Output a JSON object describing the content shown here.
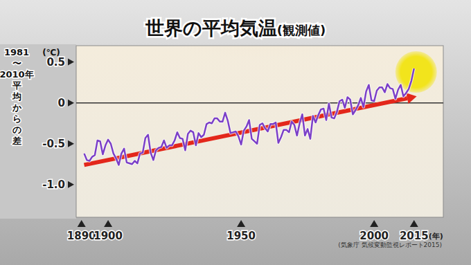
{
  "chart_data": {
    "type": "line",
    "title": "世界の平均気温",
    "subtitle": "(観測値)",
    "y_label": "1981〜2010年平均からの差",
    "annotations": {
      "y_unit": "(℃)",
      "x_unit": "(年)",
      "source": "(気象庁 気候変動監視レポート2015)"
    },
    "x": [
      1891,
      1892,
      1893,
      1894,
      1895,
      1896,
      1897,
      1898,
      1899,
      1900,
      1901,
      1902,
      1903,
      1904,
      1905,
      1906,
      1907,
      1908,
      1909,
      1910,
      1911,
      1912,
      1913,
      1914,
      1915,
      1916,
      1917,
      1918,
      1919,
      1920,
      1921,
      1922,
      1923,
      1924,
      1925,
      1926,
      1927,
      1928,
      1929,
      1930,
      1931,
      1932,
      1933,
      1934,
      1935,
      1936,
      1937,
      1938,
      1939,
      1940,
      1941,
      1942,
      1943,
      1944,
      1945,
      1946,
      1947,
      1948,
      1949,
      1950,
      1951,
      1952,
      1953,
      1954,
      1955,
      1956,
      1957,
      1958,
      1959,
      1960,
      1961,
      1962,
      1963,
      1964,
      1965,
      1966,
      1967,
      1968,
      1969,
      1970,
      1971,
      1972,
      1973,
      1974,
      1975,
      1976,
      1977,
      1978,
      1979,
      1980,
      1981,
      1982,
      1983,
      1984,
      1985,
      1986,
      1987,
      1988,
      1989,
      1990,
      1991,
      1992,
      1993,
      1994,
      1995,
      1996,
      1997,
      1998,
      1999,
      2000,
      2001,
      2002,
      2003,
      2004,
      2005,
      2006,
      2007,
      2008,
      2009,
      2010,
      2011,
      2012,
      2013,
      2014,
      2015
    ],
    "series": [
      {
        "color": "#7b3fc8",
        "values": [
          -0.62,
          -0.7,
          -0.71,
          -0.66,
          -0.64,
          -0.46,
          -0.47,
          -0.63,
          -0.52,
          -0.45,
          -0.5,
          -0.62,
          -0.68,
          -0.76,
          -0.62,
          -0.56,
          -0.73,
          -0.74,
          -0.75,
          -0.71,
          -0.74,
          -0.62,
          -0.61,
          -0.43,
          -0.39,
          -0.61,
          -0.7,
          -0.58,
          -0.55,
          -0.54,
          -0.46,
          -0.55,
          -0.52,
          -0.52,
          -0.46,
          -0.36,
          -0.43,
          -0.44,
          -0.58,
          -0.38,
          -0.34,
          -0.36,
          -0.52,
          -0.37,
          -0.42,
          -0.39,
          -0.26,
          -0.24,
          -0.25,
          -0.19,
          -0.19,
          -0.23,
          -0.23,
          -0.12,
          -0.22,
          -0.37,
          -0.36,
          -0.35,
          -0.41,
          -0.51,
          -0.34,
          -0.29,
          -0.21,
          -0.44,
          -0.47,
          -0.5,
          -0.27,
          -0.25,
          -0.31,
          -0.35,
          -0.26,
          -0.26,
          -0.24,
          -0.49,
          -0.42,
          -0.33,
          -0.33,
          -0.36,
          -0.23,
          -0.27,
          -0.4,
          -0.25,
          -0.14,
          -0.4,
          -0.32,
          -0.44,
          -0.16,
          -0.24,
          -0.15,
          -0.08,
          -0.07,
          -0.21,
          -0.01,
          -0.18,
          -0.19,
          -0.11,
          0.02,
          0.04,
          -0.06,
          0.07,
          0.04,
          -0.14,
          -0.09,
          -0.03,
          0.06,
          -0.05,
          0.14,
          0.22,
          0.03,
          0.02,
          0.15,
          0.19,
          0.19,
          0.13,
          0.23,
          0.18,
          0.17,
          0.05,
          0.16,
          0.22,
          0.08,
          0.12,
          0.17,
          0.27,
          0.42
        ]
      }
    ],
    "trend_line": {
      "x": [
        1891,
        2016
      ],
      "values": [
        -0.76,
        0.08
      ],
      "color": "#e3271b"
    },
    "xlim": [
      1888,
      2026
    ],
    "ylim": [
      -1.4,
      0.7
    ],
    "xticks": [
      1890,
      1900,
      1950,
      2000,
      2015
    ],
    "yticks": [
      0.5,
      0,
      -0.5,
      {
        "value": -1,
        "label": "-1.0"
      }
    ],
    "grid": false
  }
}
